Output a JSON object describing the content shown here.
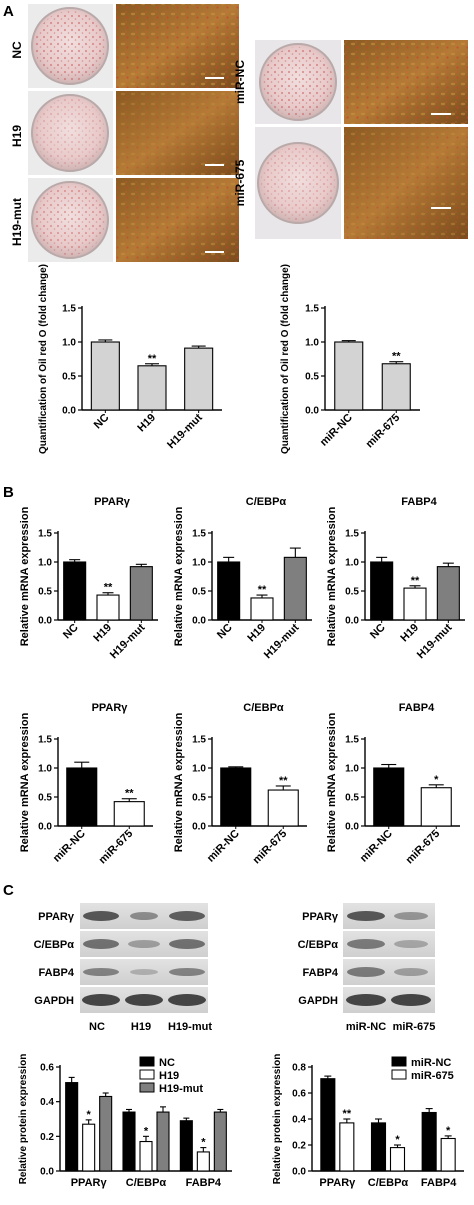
{
  "panels": {
    "A": {
      "letter": "A",
      "images_left": [
        {
          "label": "NC"
        },
        {
          "label": "H19"
        },
        {
          "label": "H19-mut"
        }
      ],
      "images_right": [
        {
          "label": "miR-NC"
        },
        {
          "label": "miR-675"
        }
      ]
    },
    "B": {
      "letter": "B"
    },
    "C": {
      "letter": "C",
      "blot_left": {
        "rows": [
          "PPARγ",
          "C/EBPα",
          "FABP4",
          "GAPDH"
        ],
        "lanes": [
          "NC",
          "H19",
          "H19-mut"
        ]
      },
      "blot_right": {
        "rows": [
          "PPARγ",
          "C/EBPα",
          "FABP4",
          "GAPDH"
        ],
        "lanes": [
          "miR-NC",
          "miR-675"
        ]
      }
    }
  },
  "colors": {
    "black": "#000000",
    "white": "#ffffff",
    "gray": "#7f7f7f",
    "light_gray": "#d3d3d3"
  },
  "chart_data": [
    {
      "id": "oil-left",
      "type": "bar",
      "title": "",
      "ylabel": "Quantification of Oil red O (fold change)",
      "categories": [
        "NC",
        "H19",
        "H19-mut"
      ],
      "values": [
        1.0,
        0.65,
        0.91
      ],
      "errors": [
        0.03,
        0.03,
        0.03
      ],
      "significance": [
        "",
        "**",
        ""
      ],
      "ylim": [
        0,
        1.5
      ],
      "yticks": [
        0.0,
        0.5,
        1.0,
        1.5
      ],
      "bar_colors": [
        "#d3d3d3",
        "#d3d3d3",
        "#d3d3d3"
      ]
    },
    {
      "id": "oil-right",
      "type": "bar",
      "title": "",
      "ylabel": "Quantification of Oil red O (fold change)",
      "categories": [
        "miR-NC",
        "miR-675"
      ],
      "values": [
        1.0,
        0.68
      ],
      "errors": [
        0.02,
        0.03
      ],
      "significance": [
        "",
        "**"
      ],
      "ylim": [
        0,
        1.5
      ],
      "yticks": [
        0.0,
        0.5,
        1.0,
        1.5
      ],
      "bar_colors": [
        "#d3d3d3",
        "#d3d3d3"
      ]
    },
    {
      "id": "b-ppar-h19",
      "type": "bar",
      "title": "PPARγ",
      "ylabel": "Relative mRNA expression",
      "categories": [
        "NC",
        "H19",
        "H19-mut"
      ],
      "values": [
        1.0,
        0.43,
        0.92
      ],
      "errors": [
        0.04,
        0.04,
        0.04
      ],
      "significance": [
        "",
        "**",
        ""
      ],
      "ylim": [
        0,
        1.5
      ],
      "yticks": [
        0.0,
        0.5,
        1.0,
        1.5
      ],
      "bar_colors": [
        "#000000",
        "#ffffff",
        "#7f7f7f"
      ]
    },
    {
      "id": "b-cebp-h19",
      "type": "bar",
      "title": "C/EBPα",
      "ylabel": "Relative mRNA expression",
      "categories": [
        "NC",
        "H19",
        "H19-mut"
      ],
      "values": [
        1.0,
        0.38,
        1.08
      ],
      "errors": [
        0.08,
        0.05,
        0.16
      ],
      "significance": [
        "",
        "**",
        ""
      ],
      "ylim": [
        0,
        1.5
      ],
      "yticks": [
        0.0,
        0.5,
        1.0,
        1.5
      ],
      "bar_colors": [
        "#000000",
        "#ffffff",
        "#7f7f7f"
      ]
    },
    {
      "id": "b-fabp-h19",
      "type": "bar",
      "title": "FABP4",
      "ylabel": "Relative mRNA expression",
      "categories": [
        "NC",
        "H19",
        "H19-mut"
      ],
      "values": [
        1.0,
        0.55,
        0.92
      ],
      "errors": [
        0.08,
        0.04,
        0.06
      ],
      "significance": [
        "",
        "**",
        ""
      ],
      "ylim": [
        0,
        1.5
      ],
      "yticks": [
        0.0,
        0.5,
        1.0,
        1.5
      ],
      "bar_colors": [
        "#000000",
        "#ffffff",
        "#7f7f7f"
      ]
    },
    {
      "id": "b-ppar-mir",
      "type": "bar",
      "title": "PPARγ",
      "ylabel": "Relative mRNA expression",
      "categories": [
        "miR-NC",
        "miR-675"
      ],
      "values": [
        1.0,
        0.42
      ],
      "errors": [
        0.1,
        0.05
      ],
      "significance": [
        "",
        "**"
      ],
      "ylim": [
        0,
        1.5
      ],
      "yticks": [
        0.0,
        0.5,
        1.0,
        1.5
      ],
      "bar_colors": [
        "#000000",
        "#ffffff"
      ]
    },
    {
      "id": "b-cebp-mir",
      "type": "bar",
      "title": "C/EBPα",
      "ylabel": "Relative mRNA expression",
      "categories": [
        "miR-NC",
        "miR-675"
      ],
      "values": [
        1.0,
        0.62
      ],
      "errors": [
        0.02,
        0.07
      ],
      "significance": [
        "",
        "**"
      ],
      "ylim": [
        0,
        1.5
      ],
      "yticks": [
        0.0,
        0.5,
        1.0,
        1.5
      ],
      "bar_colors": [
        "#000000",
        "#ffffff"
      ]
    },
    {
      "id": "b-fabp-mir",
      "type": "bar",
      "title": "FABP4",
      "ylabel": "Relative mRNA expression",
      "categories": [
        "miR-NC",
        "miR-675"
      ],
      "values": [
        1.0,
        0.66
      ],
      "errors": [
        0.06,
        0.05
      ],
      "significance": [
        "",
        "*"
      ],
      "ylim": [
        0,
        1.5
      ],
      "yticks": [
        0.0,
        0.5,
        1.0,
        1.5
      ],
      "bar_colors": [
        "#000000",
        "#ffffff"
      ]
    },
    {
      "id": "c-protein-h19",
      "type": "bar",
      "title": "",
      "ylabel": "Relative protein expression",
      "categories": [
        "PPARγ",
        "C/EBPα",
        "FABP4"
      ],
      "ylim": [
        0,
        0.6
      ],
      "yticks": [
        0.0,
        0.2,
        0.4,
        0.6
      ],
      "legend": "top-right",
      "series": [
        {
          "name": "NC",
          "color": "#000000",
          "values": [
            0.51,
            0.34,
            0.29
          ],
          "errors": [
            0.03,
            0.015,
            0.015
          ],
          "significance": [
            "",
            "",
            ""
          ]
        },
        {
          "name": "H19",
          "color": "#ffffff",
          "values": [
            0.27,
            0.17,
            0.11
          ],
          "errors": [
            0.025,
            0.03,
            0.025
          ],
          "significance": [
            "*",
            "*",
            "*"
          ]
        },
        {
          "name": "H19-mut",
          "color": "#7f7f7f",
          "values": [
            0.43,
            0.34,
            0.34
          ],
          "errors": [
            0.02,
            0.03,
            0.015
          ],
          "significance": [
            "",
            "",
            ""
          ]
        }
      ]
    },
    {
      "id": "c-protein-mir",
      "type": "bar",
      "title": "",
      "ylabel": "Relative protein expression",
      "categories": [
        "PPARγ",
        "C/EBPα",
        "FABP4"
      ],
      "ylim": [
        0,
        0.8
      ],
      "yticks": [
        0.0,
        0.2,
        0.4,
        0.6,
        0.8
      ],
      "legend": "top-right",
      "series": [
        {
          "name": "miR-NC",
          "color": "#000000",
          "values": [
            0.71,
            0.37,
            0.45
          ],
          "errors": [
            0.02,
            0.03,
            0.03
          ],
          "significance": [
            "",
            "",
            ""
          ]
        },
        {
          "name": "miR-675",
          "color": "#ffffff",
          "values": [
            0.37,
            0.18,
            0.25
          ],
          "errors": [
            0.03,
            0.02,
            0.02
          ],
          "significance": [
            "**",
            "*",
            "*"
          ]
        }
      ]
    }
  ]
}
